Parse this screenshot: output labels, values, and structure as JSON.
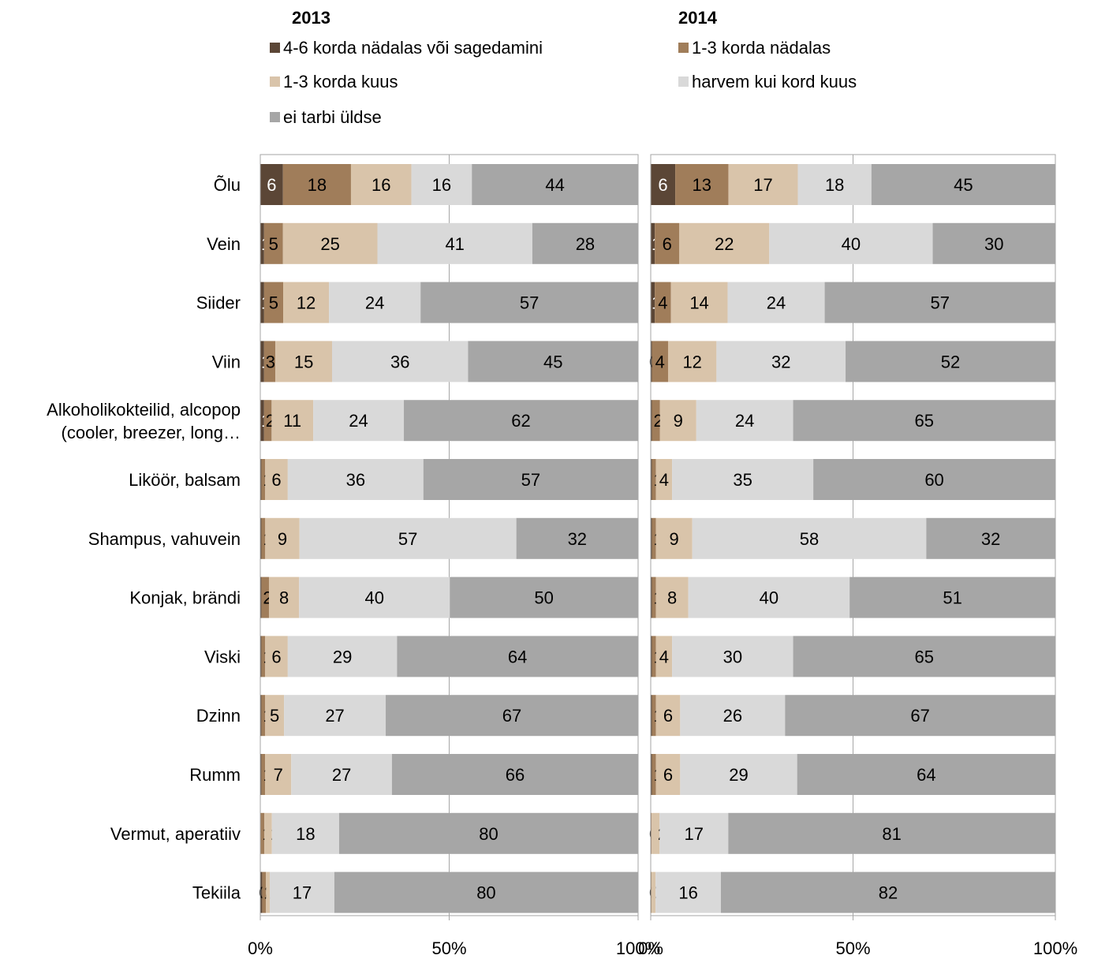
{
  "chart_data": {
    "type": "bar",
    "orientation": "horizontal",
    "stacked": "percent",
    "legend_position": "top",
    "grid": true,
    "categories": [
      "Õlu",
      "Vein",
      "Siider",
      "Viin",
      "Alkoholikokteilid, alcopop (cooler, breezer, long…",
      "Liköör, balsam",
      "Shampus, vahuvein",
      "Konjak, brändi",
      "Viski",
      "Dzinn",
      "Rumm",
      "Vermut, aperatiiv",
      "Tekiila"
    ],
    "category_lines": [
      [
        "Õlu"
      ],
      [
        "Vein"
      ],
      [
        "Siider"
      ],
      [
        "Viin"
      ],
      [
        "Alkoholikokteilid, alcopop",
        "(cooler, breezer, long…"
      ],
      [
        "Liköör, balsam"
      ],
      [
        "Shampus, vahuvein"
      ],
      [
        "Konjak, brändi"
      ],
      [
        "Viski"
      ],
      [
        "Dzinn"
      ],
      [
        "Rumm"
      ],
      [
        "Vermut, aperatiiv"
      ],
      [
        "Tekiila"
      ]
    ],
    "series": [
      {
        "name": "4-6 korda nädalas või sagedamini",
        "color": "#5b4636"
      },
      {
        "name": "1-3 korda nädalas",
        "color": "#a07d5a"
      },
      {
        "name": "1-3 korda kuus",
        "color": "#d9c4aa"
      },
      {
        "name": "harvem kui kord kuus",
        "color": "#d9d9d9"
      },
      {
        "name": "ei tarbi üldse",
        "color": "#a6a6a6"
      }
    ],
    "panels": [
      {
        "title": "2013",
        "values": [
          [
            6,
            18,
            16,
            16,
            44
          ],
          [
            1,
            5,
            25,
            41,
            28
          ],
          [
            1,
            5,
            12,
            24,
            57
          ],
          [
            1,
            3,
            15,
            36,
            45
          ],
          [
            1,
            2,
            11,
            24,
            62
          ],
          [
            0.3,
            1,
            6,
            36,
            57
          ],
          [
            0.3,
            1,
            9,
            57,
            32
          ],
          [
            0.3,
            2,
            8,
            40,
            50
          ],
          [
            0.3,
            1,
            6,
            29,
            64
          ],
          [
            0.3,
            1,
            5,
            27,
            67
          ],
          [
            0.3,
            1,
            7,
            27,
            66
          ],
          [
            0.1,
            1,
            2,
            18,
            80
          ],
          [
            0.5,
            1,
            1,
            17,
            80
          ]
        ],
        "labels": [
          [
            "",
            "18",
            "16",
            "16",
            "44"
          ],
          [
            "",
            "5",
            "25",
            "41",
            "28"
          ],
          [
            "",
            "5",
            "12",
            "24",
            "57"
          ],
          [
            "",
            "3",
            "15",
            "36",
            "45"
          ],
          [
            "",
            "2",
            "11",
            "24",
            "62"
          ],
          [
            "",
            "1",
            "6",
            "36",
            "57"
          ],
          [
            "",
            "1",
            "9",
            "57",
            "32"
          ],
          [
            "",
            "2",
            "8",
            "40",
            "50"
          ],
          [
            "",
            "1",
            "6",
            "29",
            "64"
          ],
          [
            "",
            "1",
            "5",
            "27",
            "67"
          ],
          [
            "",
            "1",
            "7",
            "27",
            "66"
          ],
          [
            "",
            "1",
            "2",
            "18",
            "80"
          ],
          [
            "0",
            "1",
            "",
            "17",
            "80"
          ]
        ],
        "first_labels": [
          "6",
          "1",
          "1",
          "1",
          "1",
          "",
          "",
          "",
          "",
          "",
          "",
          "",
          ""
        ]
      },
      {
        "title": "2014",
        "values": [
          [
            6,
            13,
            17,
            18,
            45
          ],
          [
            1,
            6,
            22,
            40,
            30
          ],
          [
            1,
            4,
            14,
            24,
            57
          ],
          [
            0.3,
            4,
            12,
            32,
            52
          ],
          [
            0.3,
            2,
            9,
            24,
            65
          ],
          [
            0.3,
            1,
            4,
            35,
            60
          ],
          [
            0.3,
            1,
            9,
            58,
            32
          ],
          [
            0.3,
            1,
            8,
            40,
            51
          ],
          [
            0.3,
            1,
            4,
            30,
            65
          ],
          [
            0.3,
            1,
            6,
            26,
            67
          ],
          [
            0.3,
            1,
            6,
            29,
            64
          ],
          [
            0.1,
            0.1,
            2,
            17,
            81
          ],
          [
            0.1,
            0.1,
            1,
            16,
            82
          ]
        ],
        "labels": [
          [
            "",
            "13",
            "17",
            "18",
            "45"
          ],
          [
            "",
            "6",
            "22",
            "40",
            "30"
          ],
          [
            "",
            "4",
            "14",
            "24",
            "57"
          ],
          [
            "0",
            "4",
            "12",
            "32",
            "52"
          ],
          [
            "",
            "2",
            "9",
            "24",
            "65"
          ],
          [
            "",
            "1",
            "4",
            "35",
            "60"
          ],
          [
            "",
            "1",
            "9",
            "58",
            "32"
          ],
          [
            "",
            "1",
            "8",
            "40",
            "51"
          ],
          [
            "",
            "1",
            "4",
            "30",
            "65"
          ],
          [
            "",
            "1",
            "6",
            "26",
            "67"
          ],
          [
            "",
            "1",
            "6",
            "29",
            "64"
          ],
          [
            "0",
            "",
            "2",
            "17",
            "81"
          ],
          [
            "0",
            "",
            "1",
            "16",
            "82"
          ]
        ],
        "first_labels": [
          "6",
          "1",
          "1",
          "",
          "",
          "",
          "",
          "",
          "",
          "",
          "",
          "",
          ""
        ]
      }
    ],
    "x_ticks": [
      "0%",
      "50%",
      "100%"
    ],
    "xlim": [
      0,
      100
    ]
  }
}
